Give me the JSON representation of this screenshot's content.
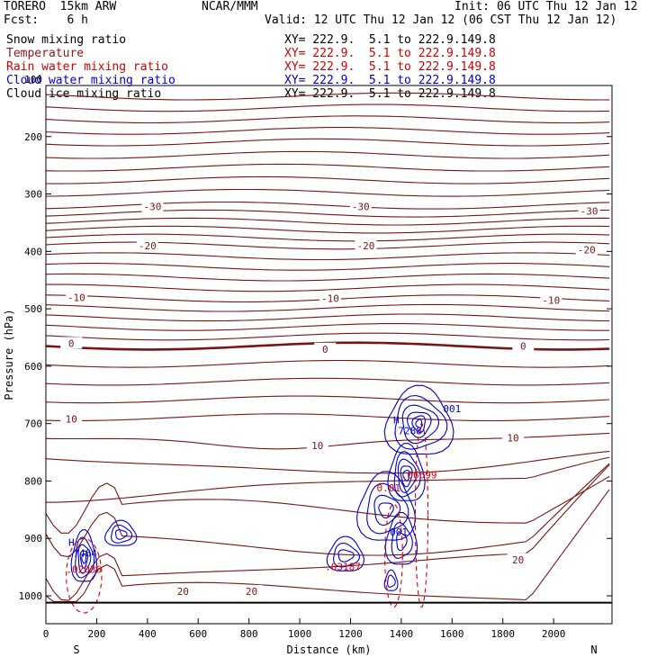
{
  "header": {
    "model": "TORERO  15km ARW",
    "org": "NCAR/MMM",
    "init": "Init: 06 UTC Thu 12 Jan 12",
    "fcst": "Fcst:    6 h",
    "valid": "Valid: 12 UTC Thu 12 Jan 12 (06 CST Thu 12 Jan 12)"
  },
  "legend": [
    {
      "name": "Snow mixing ratio",
      "color": "#000000",
      "xy": "XY= 222.9.  5.1 to 222.9.149.8"
    },
    {
      "name": "Temperature",
      "color": "#8b1a1a",
      "xy": "XY= 222.9.  5.1 to 222.9.149.8"
    },
    {
      "name": "Rain water mixing ratio",
      "color": "#cc0000",
      "xy": "XY= 222.9.  5.1 to 222.9.149.8"
    },
    {
      "name": "Cloud water mixing ratio",
      "color": "#0000cc",
      "xy": "XY= 222.9.  5.1 to 222.9.149.8"
    },
    {
      "name": "Cloud ice mixing ratio",
      "color": "#000000",
      "xy": "XY= 222.9.  5.1 to 222.9.149.8"
    }
  ],
  "colors": {
    "temperature": "#7a1515",
    "cloud_water": "#0000cc",
    "rain": "#dd0000",
    "ground": "#000000"
  },
  "chart_data": {
    "type": "contour",
    "xlabel": "Distance (km)",
    "ylabel": "Pressure (hPa)",
    "xlim": [
      0,
      2230
    ],
    "ylim": [
      1050,
      100
    ],
    "x_ticks": [
      0,
      200,
      400,
      600,
      800,
      1000,
      1200,
      1400,
      1600,
      1800,
      2000
    ],
    "y_ticks": [
      200,
      300,
      400,
      500,
      600,
      700,
      800,
      900,
      1000
    ],
    "y_tick_labels": [
      "200",
      "300",
      "400",
      "500",
      "600",
      "700",
      "800",
      "900",
      "1000"
    ],
    "y_top_label": "100",
    "endpoints": {
      "left": "S",
      "right": "N"
    },
    "temperature_isotherms": [
      {
        "level": -30,
        "labels": [
          {
            "x": 420,
            "p": 322
          },
          {
            "x": 1240,
            "p": 322
          },
          {
            "x": 2140,
            "p": 330
          }
        ]
      },
      {
        "level": -20,
        "labels": [
          {
            "x": 400,
            "p": 390
          },
          {
            "x": 1260,
            "p": 390
          },
          {
            "x": 2130,
            "p": 397
          }
        ]
      },
      {
        "level": -10,
        "labels": [
          {
            "x": 120,
            "p": 480
          },
          {
            "x": 1120,
            "p": 482
          },
          {
            "x": 1990,
            "p": 485
          }
        ]
      },
      {
        "level": 0,
        "labels": [
          {
            "x": 100,
            "p": 560
          },
          {
            "x": 1100,
            "p": 570
          },
          {
            "x": 1880,
            "p": 565
          }
        ]
      },
      {
        "level": 10,
        "labels": [
          {
            "x": 100,
            "p": 692
          },
          {
            "x": 1070,
            "p": 738
          },
          {
            "x": 1840,
            "p": 725
          }
        ]
      },
      {
        "level": 20,
        "labels": [
          {
            "x": 540,
            "p": 992
          },
          {
            "x": 810,
            "p": 992
          },
          {
            "x": 1860,
            "p": 937
          }
        ]
      }
    ],
    "cloud_water": {
      "contour_label": "001",
      "maxima": [
        {
          "label": "H",
          "value": ".7464",
          "x": 150,
          "p": 935
        },
        {
          "label": "H",
          "value": ".7288",
          "x": 1430,
          "p": 722
        }
      ]
    },
    "rain_water": {
      "contour_label": "0.01",
      "maxima": [
        {
          "value": ".06699",
          "x": 1470,
          "p": 795
        },
        {
          "value": ".03187",
          "x": 1170,
          "p": 955
        },
        {
          "value": ".02036",
          "x": 150,
          "p": 960
        }
      ]
    }
  }
}
